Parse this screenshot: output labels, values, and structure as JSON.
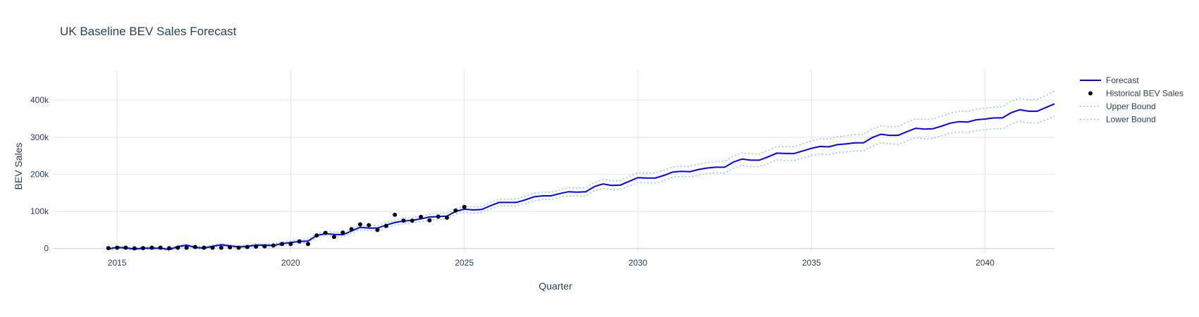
{
  "chart_data": {
    "type": "line",
    "title": "UK Baseline BEV Sales Forecast",
    "xlabel": "Quarter",
    "ylabel": "BEV Sales",
    "xlim": [
      2013.15,
      2042.0
    ],
    "ylim": [
      -10000,
      480000
    ],
    "x_ticks": [
      2015,
      2020,
      2025,
      2030,
      2035,
      2040
    ],
    "x_tick_labels": [
      "2015",
      "2020",
      "2025",
      "2030",
      "2035",
      "2040"
    ],
    "y_ticks": [
      0,
      100000,
      200000,
      300000,
      400000
    ],
    "y_tick_labels": [
      "0",
      "100k",
      "200k",
      "300k",
      "400k"
    ],
    "grid": true,
    "legend_position": "top-right",
    "legend": [
      {
        "name": "Forecast",
        "style": "line"
      },
      {
        "name": "Historical BEV Sales",
        "style": "markers"
      },
      {
        "name": "Upper Bound",
        "style": "dotted-line"
      },
      {
        "name": "Lower Bound",
        "style": "dotted-line"
      }
    ],
    "colors": {
      "forecast": "#0000ff",
      "historical": "#000000",
      "bounds": "#87ceeb",
      "text": "#2a3f5f",
      "grid": "#e5e5e5"
    },
    "series": [
      {
        "name": "Forecast",
        "x": [
          2014.75,
          2015.0,
          2015.25,
          2015.5,
          2015.75,
          2016.0,
          2016.25,
          2016.5,
          2016.75,
          2017.0,
          2017.25,
          2017.5,
          2017.75,
          2018.0,
          2018.25,
          2018.5,
          2018.75,
          2019.0,
          2019.25,
          2019.5,
          2019.75,
          2020.0,
          2020.25,
          2020.5,
          2020.75,
          2021.0,
          2021.25,
          2021.5,
          2021.75,
          2022.0,
          2022.25,
          2022.5,
          2022.75,
          2023.0,
          2023.25,
          2023.5,
          2023.75,
          2024.0,
          2024.25,
          2024.5,
          2024.75,
          2025.0,
          2025.25,
          2025.5,
          2025.75,
          2026.0,
          2026.25,
          2026.5,
          2026.75,
          2027.0,
          2027.25,
          2027.5,
          2027.75,
          2028.0,
          2028.25,
          2028.5,
          2028.75,
          2029.0,
          2029.25,
          2029.5,
          2029.75,
          2030.0,
          2030.25,
          2030.5,
          2030.75,
          2031.0,
          2031.25,
          2031.5,
          2031.75,
          2032.0,
          2032.25,
          2032.5,
          2032.75,
          2033.0,
          2033.25,
          2033.5,
          2033.75,
          2034.0,
          2034.25,
          2034.5,
          2034.75,
          2035.0,
          2035.25,
          2035.5,
          2035.75,
          2036.0,
          2036.25,
          2036.5,
          2036.75,
          2037.0,
          2037.25,
          2037.5,
          2037.75,
          2038.0,
          2038.25,
          2038.5,
          2038.75,
          2039.0,
          2039.25,
          2039.5,
          2039.75,
          2040.0,
          2040.25,
          2040.5,
          2040.75,
          2041.0,
          2041.25,
          2041.5,
          2041.75,
          2042.0
        ],
        "y": [
          -1000,
          3000,
          1500,
          -1500,
          1000,
          500,
          1000,
          -3000,
          5000,
          9000,
          3000,
          1000,
          6000,
          10000,
          7000,
          4000,
          6000,
          9000,
          9000,
          8000,
          13000,
          16000,
          19000,
          20000,
          35000,
          40000,
          38000,
          37000,
          47000,
          57000,
          55000,
          55000,
          63000,
          70000,
          74000,
          76000,
          80000,
          85000,
          86000,
          87000,
          100000,
          106000,
          104000,
          105000,
          115000,
          124000,
          124000,
          124000,
          131000,
          139000,
          142000,
          142000,
          148000,
          153000,
          152000,
          153000,
          167000,
          174000,
          170000,
          171000,
          181000,
          191000,
          190000,
          190000,
          197000,
          206000,
          208000,
          207000,
          213000,
          217000,
          219000,
          219000,
          233000,
          241000,
          238000,
          238000,
          247000,
          257000,
          256000,
          256000,
          263000,
          270000,
          275000,
          274000,
          280000,
          282000,
          285000,
          285000,
          299000,
          308000,
          305000,
          305000,
          315000,
          324000,
          322000,
          323000,
          330000,
          338000,
          342000,
          341000,
          347000,
          349000,
          352000,
          352000,
          366000,
          374000,
          370000,
          370000,
          380000,
          390000
        ]
      },
      {
        "name": "Historical BEV Sales",
        "x": [
          2014.75,
          2015.0,
          2015.25,
          2015.5,
          2015.75,
          2016.0,
          2016.25,
          2016.5,
          2016.75,
          2017.0,
          2017.25,
          2017.5,
          2017.75,
          2018.0,
          2018.25,
          2018.5,
          2018.75,
          2019.0,
          2019.25,
          2019.5,
          2019.75,
          2020.0,
          2020.25,
          2020.5,
          2020.75,
          2021.0,
          2021.25,
          2021.5,
          2021.75,
          2022.0,
          2022.25,
          2022.5,
          2022.75,
          2023.0,
          2023.25,
          2023.5,
          2023.75,
          2024.0,
          2024.25,
          2024.5,
          2024.75,
          2025.0
        ],
        "y": [
          1000,
          2000,
          2000,
          500,
          1000,
          2000,
          2000,
          1000,
          2000,
          2000,
          4000,
          2000,
          2000,
          2000,
          3000,
          2000,
          4000,
          5000,
          6000,
          8000,
          12000,
          12000,
          19000,
          12000,
          35000,
          42000,
          31000,
          43000,
          52000,
          65000,
          63000,
          50000,
          61000,
          91000,
          75000,
          75000,
          85000,
          76000,
          86000,
          83000,
          102000,
          112000
        ]
      },
      {
        "name": "Upper Bound",
        "x": [
          2014.75,
          2015.0,
          2015.25,
          2015.5,
          2015.75,
          2016.0,
          2016.25,
          2016.5,
          2016.75,
          2017.0,
          2017.25,
          2017.5,
          2017.75,
          2018.0,
          2018.25,
          2018.5,
          2018.75,
          2019.0,
          2019.25,
          2019.5,
          2019.75,
          2020.0,
          2020.25,
          2020.5,
          2020.75,
          2021.0,
          2021.25,
          2021.5,
          2021.75,
          2022.0,
          2022.25,
          2022.5,
          2022.75,
          2023.0,
          2023.25,
          2023.5,
          2023.75,
          2024.0,
          2024.25,
          2024.5,
          2024.75,
          2025.0,
          2025.25,
          2025.5,
          2025.75,
          2026.0,
          2026.25,
          2026.5,
          2026.75,
          2027.0,
          2027.25,
          2027.5,
          2027.75,
          2028.0,
          2028.25,
          2028.5,
          2028.75,
          2029.0,
          2029.25,
          2029.5,
          2029.75,
          2030.0,
          2030.25,
          2030.5,
          2030.75,
          2031.0,
          2031.25,
          2031.5,
          2031.75,
          2032.0,
          2032.25,
          2032.5,
          2032.75,
          2033.0,
          2033.25,
          2033.5,
          2033.75,
          2034.0,
          2034.25,
          2034.5,
          2034.75,
          2035.0,
          2035.25,
          2035.5,
          2035.75,
          2036.0,
          2036.25,
          2036.5,
          2036.75,
          2037.0,
          2037.25,
          2037.5,
          2037.75,
          2038.0,
          2038.25,
          2038.5,
          2038.75,
          2039.0,
          2039.25,
          2039.5,
          2039.75,
          2040.0,
          2040.25,
          2040.5,
          2040.75,
          2041.0,
          2041.25,
          2041.5,
          2041.75,
          2042.0
        ],
        "y": [
          2000,
          6000,
          4500,
          1500,
          4000,
          3500,
          4000,
          0,
          8000,
          12000,
          6000,
          4000,
          9000,
          13000,
          10000,
          7500,
          9500,
          13000,
          13000,
          12000,
          17500,
          21000,
          24000,
          25000,
          40000,
          45000,
          44000,
          43000,
          53000,
          63000,
          62000,
          62000,
          70000,
          77000,
          81000,
          83000,
          88000,
          93000,
          94000,
          95000,
          108000,
          114000,
          112000,
          113000,
          124000,
          133000,
          133000,
          133000,
          141000,
          149000,
          152000,
          152000,
          158000,
          164000,
          163000,
          164000,
          178000,
          186000,
          182000,
          183000,
          194000,
          204000,
          203000,
          204000,
          211000,
          220000,
          222000,
          221000,
          228000,
          232000,
          234000,
          235000,
          249000,
          258000,
          255000,
          255000,
          265000,
          275000,
          275000,
          275000,
          282000,
          290000,
          296000,
          295000,
          301000,
          304000,
          307000,
          307000,
          322000,
          331000,
          328000,
          329000,
          340000,
          349000,
          348000,
          349000,
          356000,
          365000,
          370000,
          369000,
          376000,
          378000,
          381000,
          382000,
          397000,
          405000,
          401000,
          402000,
          413000,
          424000
        ]
      },
      {
        "name": "Lower Bound",
        "x": [
          2014.75,
          2015.0,
          2015.25,
          2015.5,
          2015.75,
          2016.0,
          2016.25,
          2016.5,
          2016.75,
          2017.0,
          2017.25,
          2017.5,
          2017.75,
          2018.0,
          2018.25,
          2018.5,
          2018.75,
          2019.0,
          2019.25,
          2019.5,
          2019.75,
          2020.0,
          2020.25,
          2020.5,
          2020.75,
          2021.0,
          2021.25,
          2021.5,
          2021.75,
          2022.0,
          2022.25,
          2022.5,
          2022.75,
          2023.0,
          2023.25,
          2023.5,
          2023.75,
          2024.0,
          2024.25,
          2024.5,
          2024.75,
          2025.0,
          2025.25,
          2025.5,
          2025.75,
          2026.0,
          2026.25,
          2026.5,
          2026.75,
          2027.0,
          2027.25,
          2027.5,
          2027.75,
          2028.0,
          2028.25,
          2028.5,
          2028.75,
          2029.0,
          2029.25,
          2029.5,
          2029.75,
          2030.0,
          2030.25,
          2030.5,
          2030.75,
          2031.0,
          2031.25,
          2031.5,
          2031.75,
          2032.0,
          2032.25,
          2032.5,
          2032.75,
          2033.0,
          2033.25,
          2033.5,
          2033.75,
          2034.0,
          2034.25,
          2034.5,
          2034.75,
          2035.0,
          2035.25,
          2035.5,
          2035.75,
          2036.0,
          2036.25,
          2036.5,
          2036.75,
          2037.0,
          2037.25,
          2037.5,
          2037.75,
          2038.0,
          2038.25,
          2038.5,
          2038.75,
          2039.0,
          2039.25,
          2039.5,
          2039.75,
          2040.0,
          2040.25,
          2040.5,
          2040.75,
          2041.0,
          2041.25,
          2041.5,
          2041.75,
          2042.0
        ],
        "y": [
          -4000,
          0,
          -1500,
          -4500,
          -2000,
          -2500,
          -2000,
          -6000,
          2000,
          6000,
          0,
          -2000,
          3000,
          7000,
          4000,
          500,
          2500,
          5000,
          5000,
          4000,
          8500,
          11000,
          14000,
          15000,
          30000,
          35000,
          32000,
          31000,
          41000,
          51000,
          48000,
          48000,
          56000,
          63000,
          67000,
          69000,
          72000,
          77000,
          78000,
          79000,
          92000,
          98000,
          96000,
          97000,
          106000,
          115000,
          115000,
          115000,
          121000,
          129000,
          132000,
          132000,
          138000,
          142000,
          141000,
          142000,
          156000,
          162000,
          158000,
          159000,
          168000,
          178000,
          177000,
          176000,
          183000,
          192000,
          194000,
          193000,
          198000,
          202000,
          204000,
          203000,
          217000,
          224000,
          221000,
          221000,
          229000,
          239000,
          237000,
          237000,
          244000,
          250000,
          254000,
          253000,
          259000,
          260000,
          263000,
          263000,
          276000,
          285000,
          282000,
          281000,
          290000,
          299000,
          296000,
          297000,
          304000,
          311000,
          314000,
          313000,
          318000,
          320000,
          323000,
          322000,
          335000,
          343000,
          339000,
          338000,
          347000,
          356000
        ]
      }
    ]
  }
}
